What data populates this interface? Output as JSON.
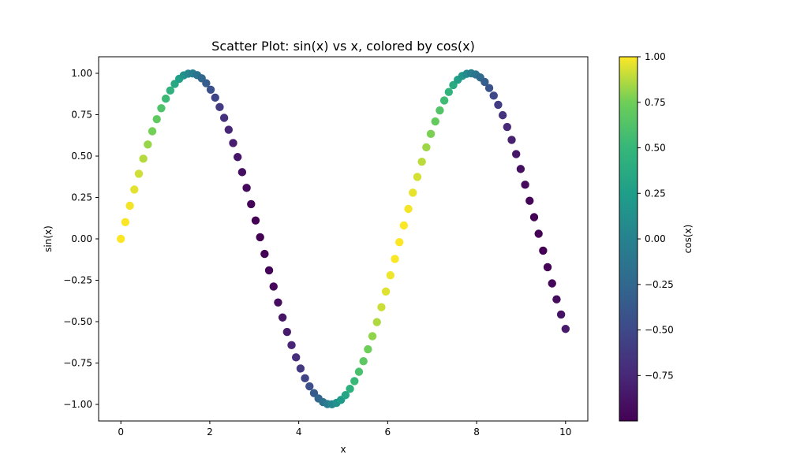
{
  "chart_data": {
    "type": "scatter",
    "title": "Scatter Plot: sin(x) vs x, colored by cos(x)",
    "xlabel": "x",
    "ylabel": "sin(x)",
    "xlim": [
      -0.5,
      10.5
    ],
    "ylim": [
      -1.1,
      1.1
    ],
    "xticks": [
      0,
      2,
      4,
      6,
      8,
      10
    ],
    "xtick_labels": [
      "0",
      "2",
      "4",
      "6",
      "8",
      "10"
    ],
    "yticks": [
      -1.0,
      -0.75,
      -0.5,
      -0.25,
      0.0,
      0.25,
      0.5,
      0.75,
      1.0
    ],
    "ytick_labels": [
      "−1.00",
      "−0.75",
      "−0.50",
      "−0.25",
      "0.00",
      "0.25",
      "0.50",
      "0.75",
      "1.00"
    ],
    "grid": false,
    "colormap": "viridis",
    "colorbar": {
      "label": "cos(x)",
      "range": [
        -0.9996,
        1.0
      ],
      "ticks": [
        -0.75,
        -0.5,
        -0.25,
        0.0,
        0.25,
        0.5,
        0.75,
        1.0
      ],
      "tick_labels": [
        "−0.75",
        "−0.50",
        "−0.25",
        "0.00",
        "0.25",
        "0.50",
        "0.75",
        "1.00"
      ]
    },
    "point_count": 100,
    "x_range": [
      0,
      10
    ],
    "x": [
      0.0,
      0.101,
      0.202,
      0.303,
      0.404,
      0.505,
      0.606,
      0.707,
      0.808,
      0.909,
      1.01,
      1.111,
      1.212,
      1.313,
      1.414,
      1.515,
      1.616,
      1.717,
      1.818,
      1.919,
      2.02,
      2.121,
      2.222,
      2.323,
      2.424,
      2.525,
      2.626,
      2.727,
      2.828,
      2.929,
      3.03,
      3.131,
      3.232,
      3.333,
      3.434,
      3.535,
      3.636,
      3.737,
      3.838,
      3.939,
      4.04,
      4.141,
      4.242,
      4.343,
      4.444,
      4.545,
      4.646,
      4.747,
      4.848,
      4.949,
      5.051,
      5.152,
      5.253,
      5.354,
      5.455,
      5.556,
      5.657,
      5.758,
      5.859,
      5.96,
      6.061,
      6.162,
      6.263,
      6.364,
      6.465,
      6.566,
      6.667,
      6.768,
      6.869,
      6.97,
      7.071,
      7.172,
      7.273,
      7.374,
      7.475,
      7.576,
      7.677,
      7.778,
      7.879,
      7.98,
      8.081,
      8.182,
      8.283,
      8.384,
      8.485,
      8.586,
      8.687,
      8.788,
      8.889,
      8.99,
      9.091,
      9.192,
      9.293,
      9.394,
      9.495,
      9.596,
      9.697,
      9.798,
      9.899,
      10.0
    ],
    "y": [
      0.0,
      0.101,
      0.2,
      0.298,
      0.393,
      0.484,
      0.57,
      0.65,
      0.723,
      0.789,
      0.847,
      0.896,
      0.936,
      0.967,
      0.988,
      0.998,
      0.999,
      0.989,
      0.97,
      0.94,
      0.901,
      0.853,
      0.796,
      0.731,
      0.659,
      0.579,
      0.494,
      0.403,
      0.308,
      0.21,
      0.111,
      0.01,
      -0.091,
      -0.19,
      -0.288,
      -0.384,
      -0.475,
      -0.562,
      -0.642,
      -0.716,
      -0.783,
      -0.842,
      -0.891,
      -0.932,
      -0.964,
      -0.986,
      -0.998,
      -0.999,
      -0.991,
      -0.973,
      -0.944,
      -0.906,
      -0.859,
      -0.803,
      -0.739,
      -0.667,
      -0.588,
      -0.503,
      -0.413,
      -0.318,
      -0.22,
      -0.121,
      -0.02,
      0.081,
      0.181,
      0.279,
      0.374,
      0.466,
      0.553,
      0.634,
      0.709,
      0.776,
      0.836,
      0.887,
      0.929,
      0.961,
      0.984,
      0.997,
      1.0,
      0.993,
      0.975,
      0.948,
      0.911,
      0.865,
      0.81,
      0.747,
      0.676,
      0.598,
      0.512,
      0.422,
      0.327,
      0.23,
      0.131,
      0.031,
      -0.071,
      -0.171,
      -0.269,
      -0.365,
      -0.457,
      -0.544
    ],
    "color_values": [
      1.0,
      0.995,
      0.98,
      0.955,
      0.92,
      0.875,
      0.822,
      0.76,
      0.691,
      0.615,
      0.532,
      0.444,
      0.352,
      0.256,
      0.156,
      0.055,
      -0.046,
      -0.146,
      -0.245,
      -0.342,
      -0.435,
      -0.523,
      -0.606,
      -0.683,
      -0.753,
      -0.815,
      -0.869,
      -0.915,
      -0.951,
      -0.978,
      -0.994,
      -1.0,
      -0.996,
      -0.982,
      -0.958,
      -0.924,
      -0.88,
      -0.827,
      -0.766,
      -0.698,
      -0.622,
      -0.54,
      -0.453,
      -0.361,
      -0.265,
      -0.166,
      -0.065,
      0.035,
      0.136,
      0.235,
      0.332,
      0.426,
      0.514,
      0.597,
      0.675,
      0.745,
      0.809,
      0.864,
      0.911,
      0.948,
      0.976,
      0.993,
      1.0,
      0.997,
      0.984,
      0.961,
      0.927,
      0.885,
      0.833,
      0.773,
      0.705,
      0.63,
      0.549,
      0.462,
      0.37,
      0.275,
      0.176,
      0.075,
      -0.025,
      -0.126,
      -0.225,
      -0.322,
      -0.416,
      -0.505,
      -0.589,
      -0.667,
      -0.738,
      -0.802,
      -0.859,
      -0.906,
      -0.945,
      -0.973,
      -0.991,
      -1.0,
      -0.997,
      -0.985,
      -0.963,
      -0.931,
      -0.89,
      -0.839
    ]
  }
}
